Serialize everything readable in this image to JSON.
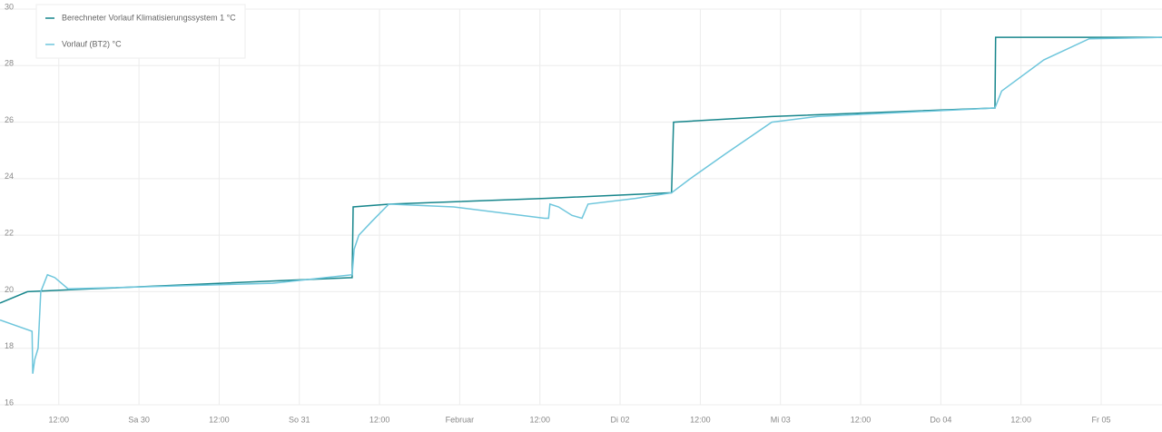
{
  "chart_data": {
    "type": "line",
    "xlim": [
      -20.8,
      153.1
    ],
    "xticks": [
      {
        "value": -12,
        "label": "12:00"
      },
      {
        "value": 0,
        "label": "Sa 30"
      },
      {
        "value": 12,
        "label": "12:00"
      },
      {
        "value": 24,
        "label": "So 31"
      },
      {
        "value": 36,
        "label": "12:00"
      },
      {
        "value": 48,
        "label": "Februar"
      },
      {
        "value": 60,
        "label": "12:00"
      },
      {
        "value": 72,
        "label": "Di 02"
      },
      {
        "value": 84,
        "label": "12:00"
      },
      {
        "value": 96,
        "label": "Mi 03"
      },
      {
        "value": 108,
        "label": "12:00"
      },
      {
        "value": 120,
        "label": "Do 04"
      },
      {
        "value": 132,
        "label": "12:00"
      },
      {
        "value": 144,
        "label": "Fr 05"
      }
    ],
    "ylim": [
      16,
      30
    ],
    "yticks": [
      16,
      18,
      20,
      22,
      24,
      26,
      28,
      30
    ],
    "grid": true,
    "series": [
      {
        "name": "Berechneter Vorlauf Klimatisierungssystem 1 °C",
        "color": "#17868c",
        "x": [
          -20.8,
          -16.7,
          -7.2,
          31.9,
          32.05,
          37.6,
          60.7,
          79.7,
          80.0,
          94.7,
          128.1,
          128.2,
          153.1
        ],
        "values": [
          19.6,
          20.0,
          20.1,
          20.5,
          23.0,
          23.1,
          23.3,
          23.5,
          26.0,
          26.2,
          26.5,
          29.0,
          29.0
        ]
      },
      {
        "name": "Vorlauf (BT2) °C",
        "color": "#6ec6dc",
        "x": [
          -20.8,
          -16.0,
          -15.9,
          -15.6,
          -15.1,
          -14.7,
          -13.7,
          -12.6,
          -10.6,
          20.0,
          31.9,
          32.2,
          32.9,
          34.9,
          37.4,
          47.1,
          60.7,
          61.3,
          61.5,
          62.8,
          64.8,
          66.3,
          67.2,
          74.3,
          79.7,
          82.5,
          87.9,
          94.7,
          101.5,
          128.1,
          129.1,
          135.4,
          142.2,
          153.1
        ],
        "values": [
          19.0,
          18.6,
          17.1,
          17.6,
          18.0,
          20.0,
          20.6,
          20.5,
          20.1,
          20.3,
          20.6,
          21.5,
          22.0,
          22.5,
          23.1,
          23.0,
          22.6,
          22.6,
          23.1,
          23.0,
          22.7,
          22.6,
          23.1,
          23.3,
          23.5,
          24.0,
          24.9,
          26.0,
          26.2,
          26.5,
          27.1,
          28.2,
          28.95,
          29.0
        ]
      }
    ]
  }
}
